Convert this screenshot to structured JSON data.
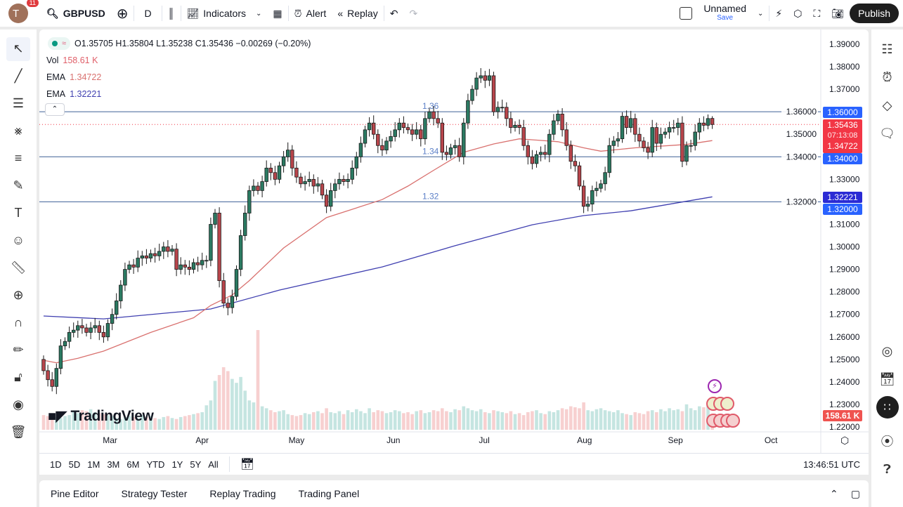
{
  "topbar": {
    "avatar_letter": "T",
    "notification_count": "11",
    "symbol": "GBPUSD",
    "interval": "D",
    "indicators_label": "Indicators",
    "alert_label": "Alert",
    "replay_label": "Replay",
    "layout_name": "Unnamed",
    "save_label": "Save",
    "publish_label": "Publish"
  },
  "legend": {
    "ohlc": "O1.35705 H1.35804 L1.35238 C1.35436 −0.00269 (−0.20%)",
    "vol_label": "Vol",
    "vol_value": "158.61 K",
    "ema1_label": "EMA",
    "ema1_value": "1.34722",
    "ema2_label": "EMA",
    "ema2_value": "1.32221"
  },
  "price_axis": {
    "ticks": [
      "1.39000",
      "1.38000",
      "1.37000",
      "1.36000",
      "1.35000",
      "1.34000",
      "1.33000",
      "1.32000",
      "1.31000",
      "1.30000",
      "1.29000",
      "1.28000",
      "1.27000",
      "1.26000",
      "1.25000",
      "1.24000",
      "1.23000",
      "1.22000"
    ],
    "badges": {
      "line_136": "1.36000",
      "last_price": "1.35436",
      "countdown": "07:13:08",
      "ema1": "1.34722",
      "line_134": "1.34000",
      "ema2": "1.32221",
      "line_132": "1.32000",
      "volume": "158.61 K"
    }
  },
  "time_axis": {
    "labels": [
      {
        "text": "Mar",
        "bar": 15.5
      },
      {
        "text": "Apr",
        "bar": 37
      },
      {
        "text": "May",
        "bar": 59
      },
      {
        "text": "Jun",
        "bar": 81.6
      },
      {
        "text": "Jul",
        "bar": 102.8
      },
      {
        "text": "Aug",
        "bar": 126.2
      },
      {
        "text": "Sep",
        "bar": 147.4
      },
      {
        "text": "Oct",
        "bar": 169.7
      }
    ],
    "clock": "13:46:51 UTC"
  },
  "horizontal_lines": [
    {
      "price": 1.36,
      "label": "1.36"
    },
    {
      "price": 1.34,
      "label": "1.34"
    },
    {
      "price": 1.32,
      "label": "1.32"
    }
  ],
  "colors": {
    "up": "#2b7a62",
    "down": "#b8454b",
    "ema_fast": "#d9716f",
    "ema_slow": "#3f3fb0",
    "hline": "#3d6196",
    "badge_blue": "#2962ff",
    "badge_indigo": "#2a2ad4",
    "badge_red": "#f23645",
    "vol_up": "#c5e5e1",
    "vol_down": "#f7d0d0"
  },
  "chart_data": {
    "type": "candlestick",
    "symbol": "GBPUSD",
    "interval": "D",
    "first_open": 1.25,
    "closes": [
      1.245,
      1.241,
      1.238,
      1.246,
      1.256,
      1.258,
      1.262,
      1.263,
      1.265,
      1.264,
      1.262,
      1.264,
      1.265,
      1.262,
      1.26,
      1.266,
      1.27,
      1.276,
      1.283,
      1.29,
      1.292,
      1.291,
      1.295,
      1.296,
      1.295,
      1.297,
      1.296,
      1.298,
      1.3,
      1.298,
      1.299,
      1.29,
      1.292,
      1.291,
      1.29,
      1.293,
      1.292,
      1.294,
      1.294,
      1.31,
      1.315,
      1.285,
      1.275,
      1.273,
      1.278,
      1.29,
      1.305,
      1.315,
      1.325,
      1.327,
      1.325,
      1.329,
      1.335,
      1.333,
      1.33,
      1.336,
      1.34,
      1.343,
      1.335,
      1.331,
      1.328,
      1.329,
      1.33,
      1.327,
      1.328,
      1.323,
      1.318,
      1.325,
      1.328,
      1.33,
      1.329,
      1.33,
      1.335,
      1.34,
      1.346,
      1.352,
      1.355,
      1.35,
      1.345,
      1.343,
      1.347,
      1.349,
      1.352,
      1.355,
      1.353,
      1.352,
      1.35,
      1.352,
      1.348,
      1.357,
      1.36,
      1.357,
      1.355,
      1.342,
      1.341,
      1.344,
      1.345,
      1.34,
      1.355,
      1.365,
      1.37,
      1.375,
      1.376,
      1.374,
      1.376,
      1.36,
      1.362,
      1.362,
      1.357,
      1.353,
      1.354,
      1.353,
      1.345,
      1.34,
      1.337,
      1.341,
      1.342,
      1.341,
      1.35,
      1.356,
      1.359,
      1.352,
      1.345,
      1.338,
      1.336,
      1.327,
      1.318,
      1.319,
      1.325,
      1.326,
      1.328,
      1.333,
      1.345,
      1.347,
      1.348,
      1.358,
      1.353,
      1.357,
      1.35,
      1.347,
      1.344,
      1.342,
      1.353,
      1.346,
      1.35,
      1.351,
      1.353,
      1.353,
      1.355,
      1.338,
      1.345,
      1.345,
      1.351,
      1.355,
      1.354,
      1.357,
      1.35436
    ],
    "last_bar": {
      "open": 1.35705,
      "high": 1.35804,
      "low": 1.35238,
      "close": 1.35436,
      "change": -0.00269,
      "change_pct": -0.2
    },
    "volumes_k": [
      150,
      140,
      160,
      130,
      120,
      140,
      150,
      180,
      170,
      200,
      190,
      210,
      180,
      170,
      160,
      150,
      140,
      120,
      110,
      130,
      140,
      130,
      120,
      150,
      130,
      140,
      120,
      110,
      130,
      140,
      120,
      110,
      130,
      140,
      150,
      160,
      170,
      180,
      250,
      300,
      500,
      560,
      640,
      600,
      520,
      480,
      540,
      400,
      300,
      280,
      1020,
      240,
      220,
      200,
      180,
      190,
      200,
      160,
      150,
      140,
      150,
      170,
      160,
      180,
      190,
      170,
      220,
      180,
      170,
      190,
      160,
      200,
      180,
      210,
      190,
      170,
      220,
      180,
      200,
      190,
      170,
      180,
      200,
      190,
      170,
      180,
      160,
      190,
      200,
      170,
      180,
      200,
      190,
      220,
      190,
      180,
      210,
      200,
      240,
      220,
      200,
      190,
      210,
      180,
      170,
      200,
      190,
      180,
      170,
      190,
      160,
      170,
      150,
      180,
      190,
      200,
      170,
      160,
      190,
      180,
      200,
      220,
      210,
      240,
      230,
      220,
      280,
      200,
      190,
      210,
      220,
      200,
      190,
      180,
      200,
      170,
      160,
      150,
      180,
      170,
      160,
      190,
      200,
      180,
      210,
      190,
      220,
      200,
      210,
      190,
      260,
      220,
      200,
      240,
      230,
      250,
      158.61
    ],
    "ema_fast": {
      "label": "EMA",
      "last": 1.34722,
      "points": [
        [
          0,
          1.2496
        ],
        [
          3,
          1.2485
        ],
        [
          8,
          1.2505
        ],
        [
          14,
          1.2537
        ],
        [
          25,
          1.262
        ],
        [
          35,
          1.2685
        ],
        [
          39,
          1.274
        ],
        [
          44,
          1.2786
        ],
        [
          48,
          1.285
        ],
        [
          56,
          1.2995
        ],
        [
          66,
          1.313
        ],
        [
          79,
          1.321
        ],
        [
          85,
          1.327
        ],
        [
          91,
          1.334
        ],
        [
          98,
          1.342
        ],
        [
          105,
          1.3457
        ],
        [
          111,
          1.348
        ],
        [
          120,
          1.3467
        ],
        [
          126,
          1.344
        ],
        [
          130,
          1.3425
        ],
        [
          138,
          1.344
        ],
        [
          150,
          1.3455
        ],
        [
          156,
          1.34722
        ]
      ]
    },
    "ema_slow": {
      "label": "EMA",
      "last": 1.32221,
      "points": [
        [
          0,
          1.2693
        ],
        [
          14,
          1.268
        ],
        [
          39,
          1.2724
        ],
        [
          55,
          1.2808
        ],
        [
          79,
          1.2911
        ],
        [
          96,
          1.3005
        ],
        [
          114,
          1.3098
        ],
        [
          126,
          1.3139
        ],
        [
          137,
          1.316
        ],
        [
          156,
          1.32221
        ]
      ]
    },
    "ylim": [
      1.2155,
      1.3935
    ]
  },
  "range_bar": {
    "ranges": [
      "1D",
      "5D",
      "1M",
      "3M",
      "6M",
      "YTD",
      "1Y",
      "5Y",
      "All"
    ]
  },
  "bottom_tabs": [
    "Pine Editor",
    "Strategy Tester",
    "Replay Trading",
    "Trading Panel"
  ],
  "watermark": "TradingView"
}
